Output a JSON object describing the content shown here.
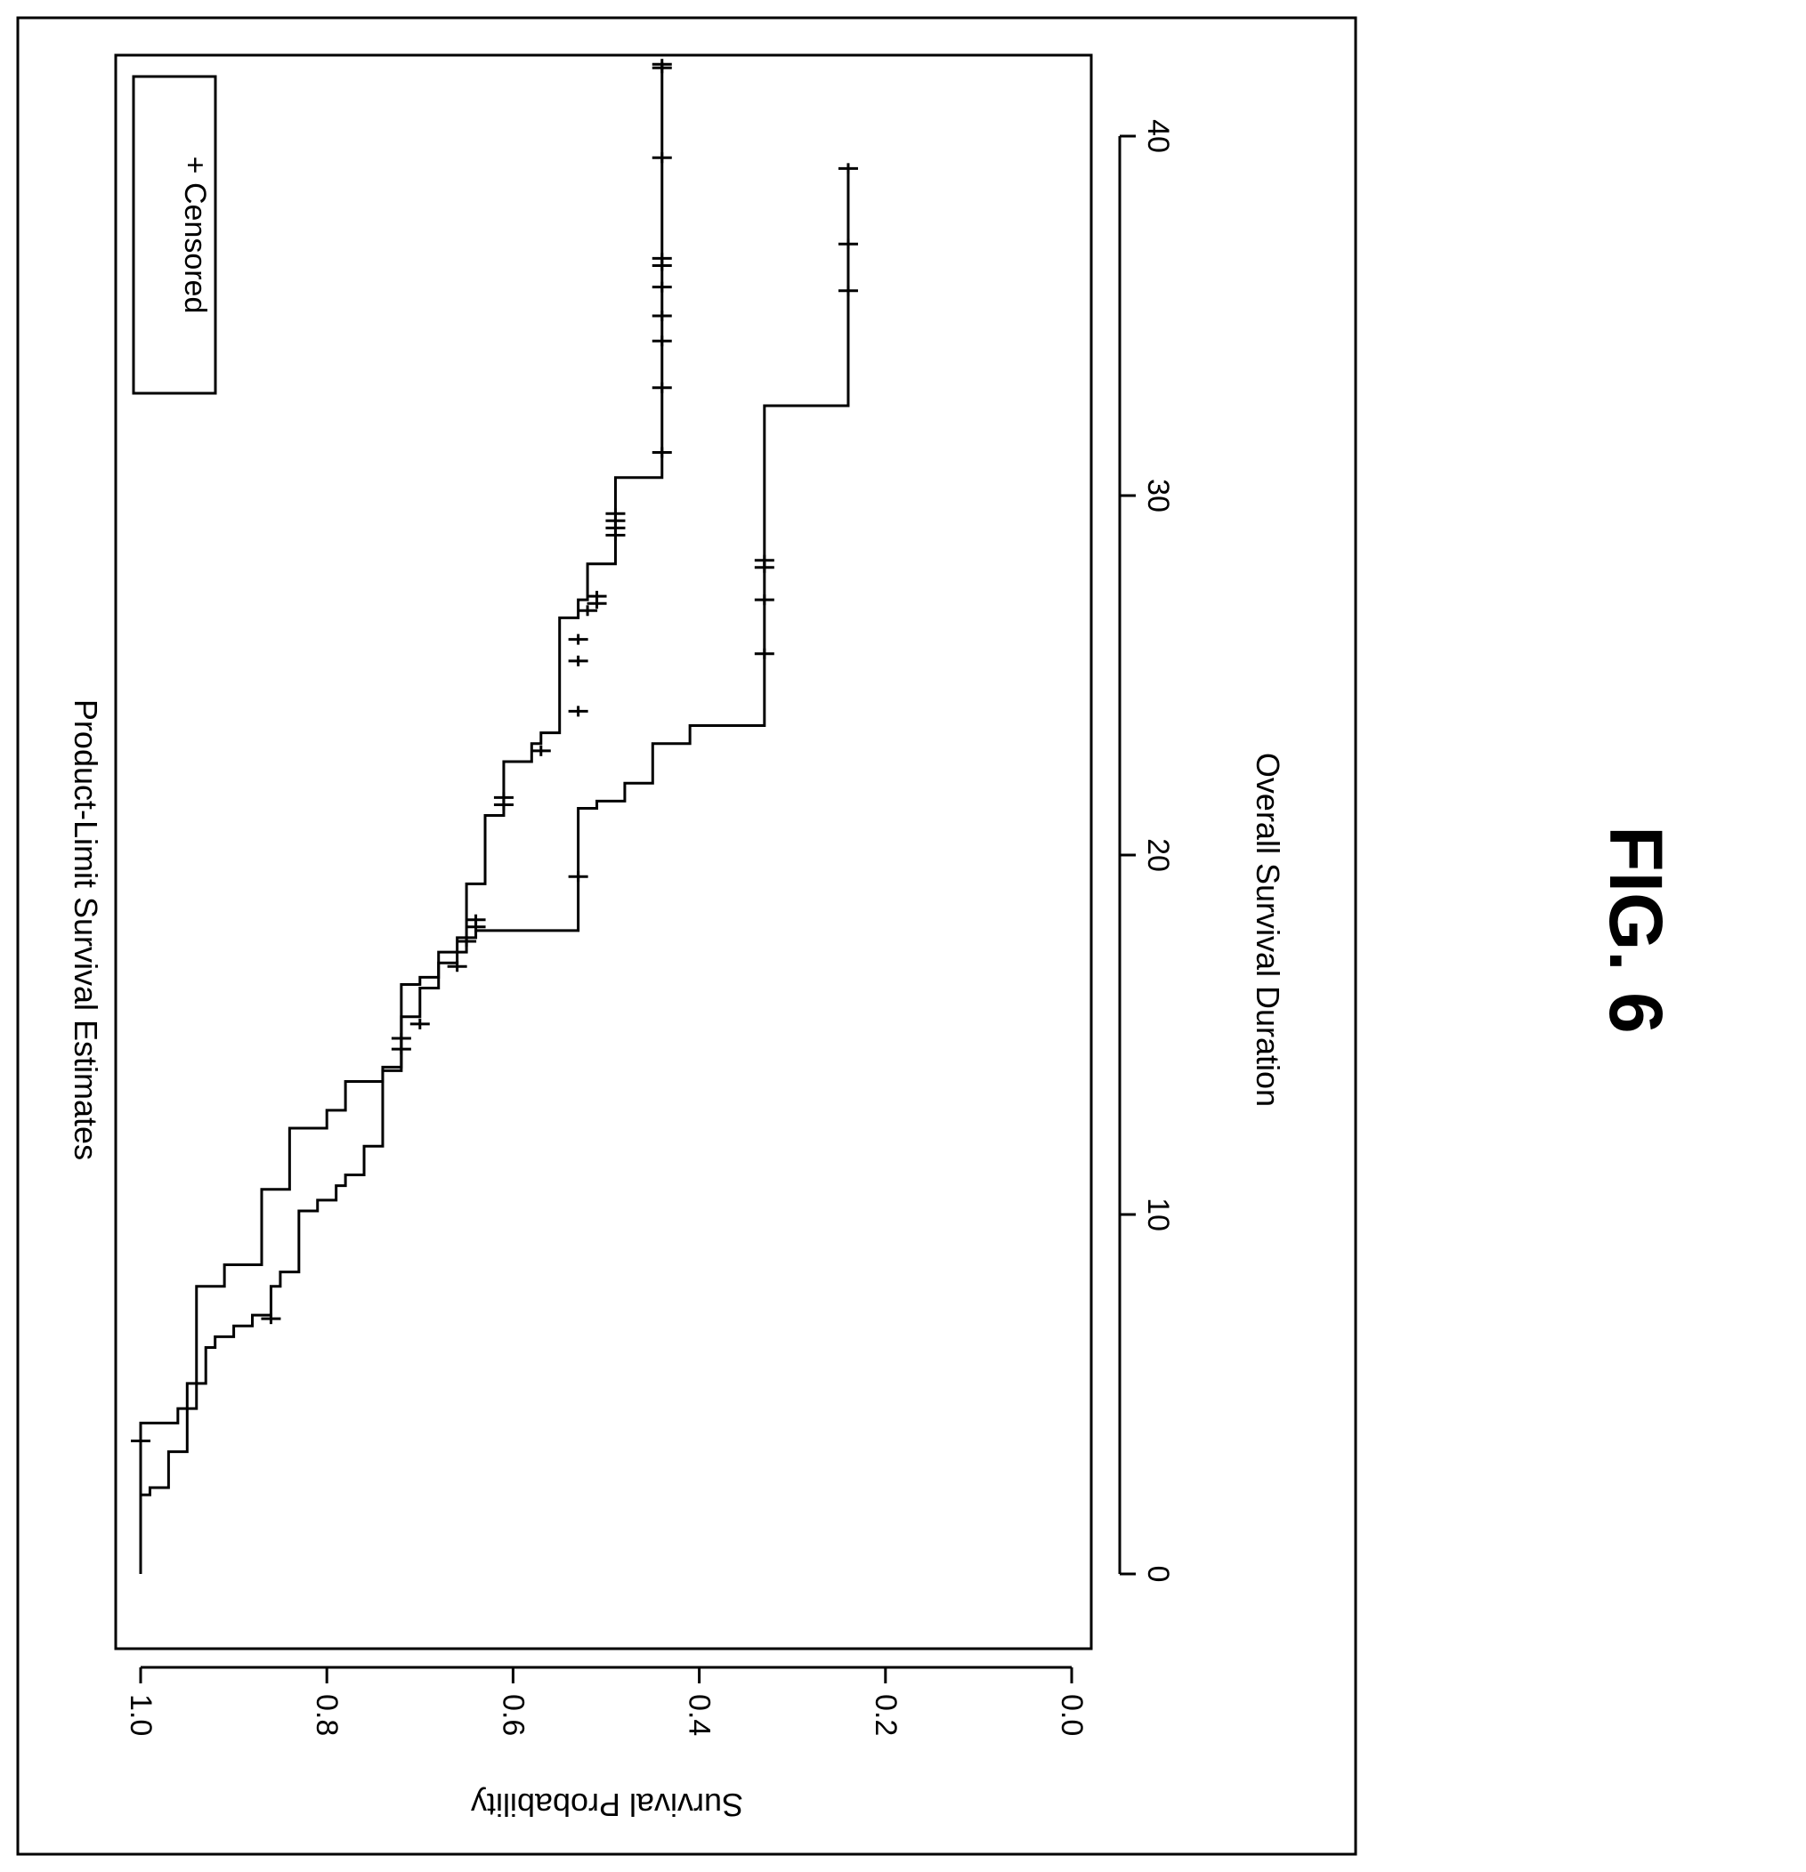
{
  "figure_label": "FIG. 6",
  "chart_data": {
    "type": "line",
    "step": true,
    "orientation": "rotated-90",
    "title": "Product-Limit Survival Estimates",
    "xlabel": "Overall Survival Duration",
    "ylabel": "Survival Probability",
    "xlim": [
      -3.5,
      42.5
    ],
    "ylim": [
      0,
      1
    ],
    "xticks": [
      0,
      10,
      20,
      30,
      40
    ],
    "xtick_labels": [
      "0",
      "10",
      "20",
      "30",
      "40"
    ],
    "yticks": [
      0.0,
      0.2,
      0.4,
      0.6,
      0.8,
      1.0
    ],
    "ytick_labels": [
      "0.0",
      "0.2",
      "0.4",
      "0.6",
      "0.8",
      "1.0"
    ],
    "legend": {
      "label": "+ Censored",
      "position": "top-right"
    },
    "grid": false,
    "series": [
      {
        "steps": [
          [
            0,
            1.0
          ],
          [
            4.2,
            0.96
          ],
          [
            4.6,
            0.94
          ],
          [
            8.0,
            0.91
          ],
          [
            8.6,
            0.87
          ],
          [
            10.7,
            0.84
          ],
          [
            12.4,
            0.8
          ],
          [
            12.9,
            0.78
          ],
          [
            13.7,
            0.74
          ],
          [
            14.1,
            0.72
          ],
          [
            16.4,
            0.7
          ],
          [
            16.6,
            0.68
          ],
          [
            17.0,
            0.66
          ],
          [
            17.3,
            0.65
          ],
          [
            19.2,
            0.63
          ],
          [
            21.1,
            0.61
          ],
          [
            22.6,
            0.58
          ],
          [
            23.1,
            0.57
          ],
          [
            23.4,
            0.55
          ],
          [
            26.6,
            0.53
          ],
          [
            27.1,
            0.52
          ],
          [
            28.1,
            0.49
          ],
          [
            30.5,
            0.44
          ],
          [
            42.0,
            0.44
          ]
        ],
        "censored": [
          [
            3.7,
            1.0
          ],
          [
            14.6,
            0.72
          ],
          [
            16.9,
            0.66
          ],
          [
            17.6,
            0.65
          ],
          [
            18.0,
            0.64
          ],
          [
            18.2,
            0.64
          ],
          [
            21.4,
            0.61
          ],
          [
            21.6,
            0.61
          ],
          [
            22.9,
            0.57
          ],
          [
            24.0,
            0.53
          ],
          [
            25.4,
            0.53
          ],
          [
            26.0,
            0.53
          ],
          [
            26.8,
            0.52
          ],
          [
            27.0,
            0.51
          ],
          [
            27.2,
            0.51
          ],
          [
            28.9,
            0.49
          ],
          [
            29.1,
            0.49
          ],
          [
            29.3,
            0.49
          ],
          [
            29.5,
            0.49
          ],
          [
            31.2,
            0.44
          ],
          [
            33.0,
            0.44
          ],
          [
            34.3,
            0.44
          ],
          [
            35.0,
            0.44
          ],
          [
            35.8,
            0.44
          ],
          [
            36.4,
            0.44
          ],
          [
            36.6,
            0.44
          ],
          [
            39.4,
            0.44
          ],
          [
            41.9,
            0.44
          ],
          [
            42.0,
            0.44
          ]
        ]
      },
      {
        "steps": [
          [
            0,
            1.0
          ],
          [
            2.2,
            0.99
          ],
          [
            2.4,
            0.97
          ],
          [
            3.4,
            0.95
          ],
          [
            5.3,
            0.93
          ],
          [
            6.3,
            0.92
          ],
          [
            6.6,
            0.9
          ],
          [
            6.9,
            0.88
          ],
          [
            7.2,
            0.86
          ],
          [
            8.0,
            0.85
          ],
          [
            8.4,
            0.83
          ],
          [
            10.1,
            0.81
          ],
          [
            10.4,
            0.79
          ],
          [
            10.8,
            0.78
          ],
          [
            11.1,
            0.76
          ],
          [
            11.9,
            0.74
          ],
          [
            14.0,
            0.72
          ],
          [
            15.5,
            0.7
          ],
          [
            16.3,
            0.68
          ],
          [
            17.3,
            0.66
          ],
          [
            17.7,
            0.64
          ],
          [
            17.9,
            0.53
          ],
          [
            21.3,
            0.51
          ],
          [
            21.5,
            0.48
          ],
          [
            22.0,
            0.45
          ],
          [
            23.1,
            0.41
          ],
          [
            23.6,
            0.33
          ],
          [
            32.5,
            0.24
          ],
          [
            39.1,
            0.24
          ]
        ],
        "censored": [
          [
            7.1,
            0.86
          ],
          [
            14.9,
            0.72
          ],
          [
            15.3,
            0.7
          ],
          [
            19.4,
            0.53
          ],
          [
            25.6,
            0.33
          ],
          [
            27.1,
            0.33
          ],
          [
            28.0,
            0.33
          ],
          [
            28.2,
            0.33
          ],
          [
            35.7,
            0.24
          ],
          [
            37.0,
            0.24
          ],
          [
            39.1,
            0.24
          ]
        ]
      }
    ]
  }
}
